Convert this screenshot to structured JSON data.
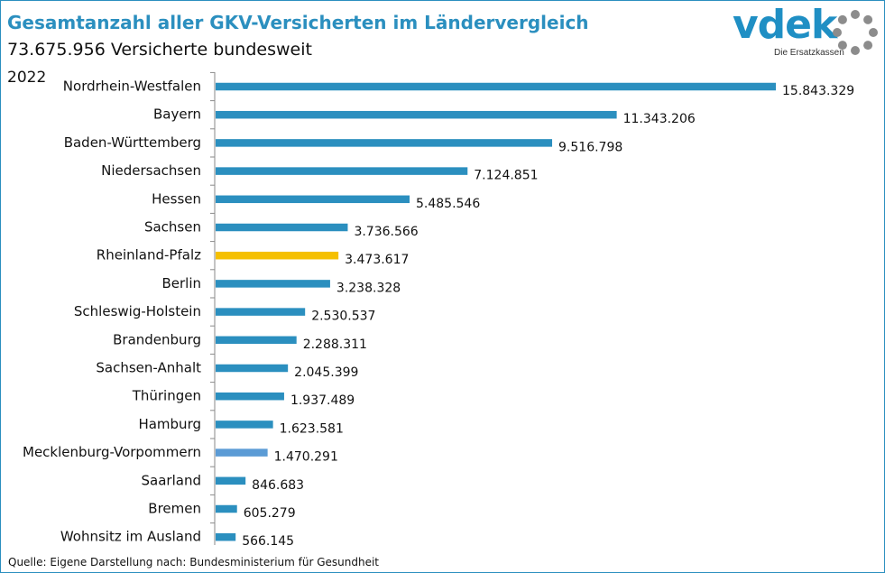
{
  "header": {
    "title": "Gesamtanzahl aller GKV-Versicherten im Ländervergleich",
    "subtitle": "73.675.956 Versicherte bundesweit",
    "year": "2022"
  },
  "logo": {
    "wordmark": "vdek",
    "tagline": "Die Ersatzkassen",
    "color": "#1f8fc4"
  },
  "footer": {
    "source": "Quelle: Eigene Darstellung nach: Bundesministerium für Gesundheit"
  },
  "chart_data": {
    "type": "bar",
    "orientation": "horizontal",
    "title": "Gesamtanzahl aller GKV-Versicherten im Ländervergleich",
    "categories": [
      "Nordrhein-Westfalen",
      "Bayern",
      "Baden-Württemberg",
      "Niedersachsen",
      "Hessen",
      "Sachsen",
      "Rheinland-Pfalz",
      "Berlin",
      "Schleswig-Holstein",
      "Brandenburg",
      "Sachsen-Anhalt",
      "Thüringen",
      "Hamburg",
      "Mecklenburg-Vorpommern",
      "Saarland",
      "Bremen",
      "Wohnsitz im Ausland"
    ],
    "values": [
      15843329,
      11343206,
      9516798,
      7124851,
      5485546,
      3736566,
      3473617,
      3238328,
      2530537,
      2288311,
      2045399,
      1937489,
      1623581,
      1470291,
      846683,
      605279,
      566145
    ],
    "value_labels": [
      "15.843.329",
      "11.343.206",
      "9.516.798",
      "7.124.851",
      "5.485.546",
      "3.736.566",
      "3.473.617",
      "3.238.328",
      "2.530.537",
      "2.288.311",
      "2.045.399",
      "1.937.489",
      "1.623.581",
      "1.470.291",
      "846.683",
      "605.279",
      "566.145"
    ],
    "colors": {
      "default": "#2b8fbf",
      "Rheinland-Pfalz": "#f5c000",
      "Mecklenburg-Vorpommern": "#5b9bd5"
    },
    "xlim": [
      0,
      15843329
    ],
    "grid": false,
    "legend": "none"
  }
}
